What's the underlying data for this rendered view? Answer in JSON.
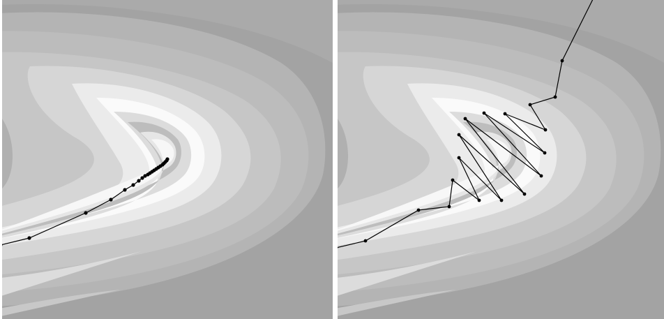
{
  "figure": {
    "panels": [
      {
        "id": "left",
        "description_visible_text": ""
      },
      {
        "id": "right",
        "description_visible_text": ""
      }
    ],
    "colors": {
      "background_dark": "#a2a2a2",
      "band_mid": "#b8b8b8",
      "band_light": "#d4d4d4",
      "band_white": "#f4f4f4",
      "path": "#000000"
    }
  }
}
